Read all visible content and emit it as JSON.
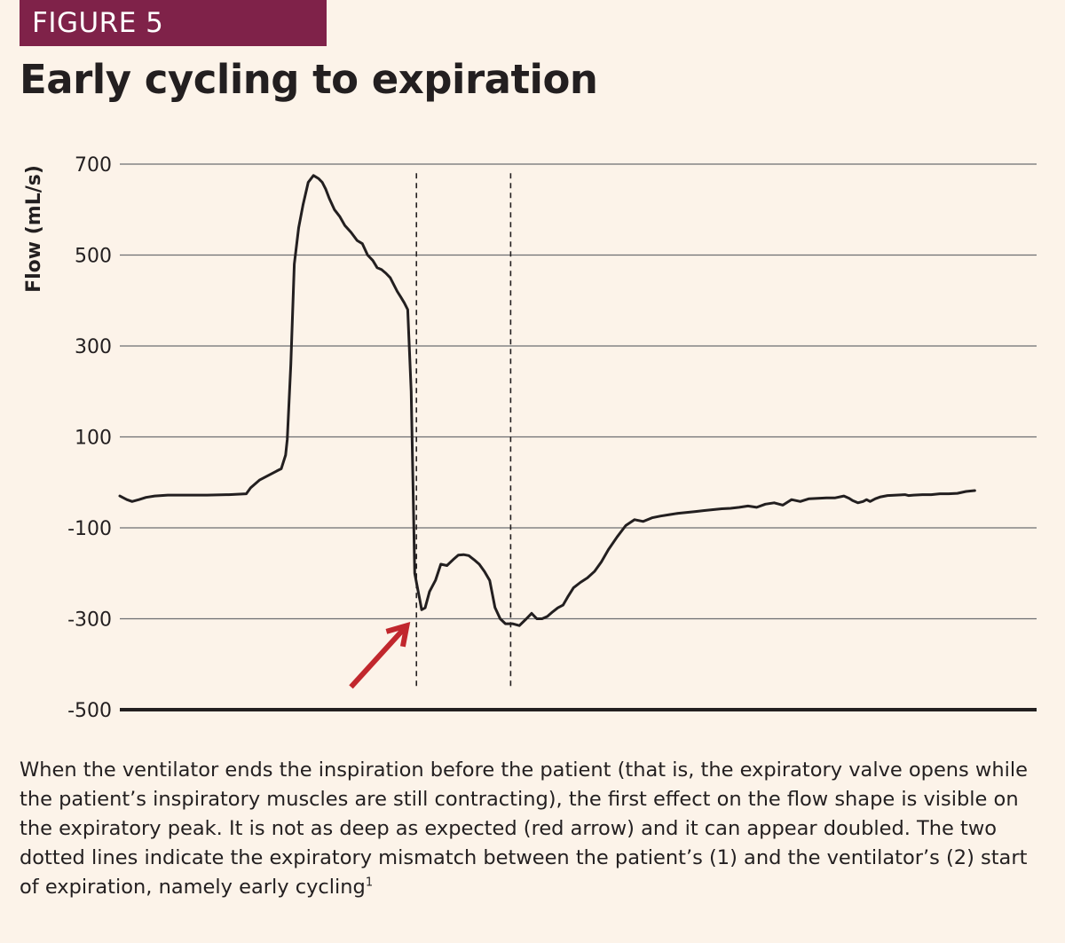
{
  "figure_label": "FIGURE 5",
  "title": "Early cycling to expiration",
  "caption": "When the ventilator ends the inspiration before the patient (that is, the expiratory valve opens while the patient’s inspiratory muscles are still contracting), the first effect on the flow shape is visible on the expiratory peak. It is not as deep as expected (red arrow) and it can appear doubled. The two dotted lines indicate the expiratory mismatch between the patient’s (1) and the ventilator’s (2) start of expiration, namely early cycling",
  "caption_sup": "1",
  "colors": {
    "badge": "#7f2249",
    "background": "#fcf3e9",
    "trace": "#231f20",
    "arrow": "#c1272d",
    "grid": "#6d6e71"
  },
  "chart_data": {
    "type": "line",
    "title": "Early cycling to expiration",
    "xlabel": "",
    "ylabel": "Flow (mL/s)",
    "ylim": [
      -500,
      700
    ],
    "yticks": [
      700,
      500,
      300,
      100,
      -100,
      -300,
      -500
    ],
    "ytick_labels": [
      "700",
      "500",
      "300",
      "100",
      "-100",
      "-300",
      "-500"
    ],
    "grid": "horizontal",
    "xlim": [
      0,
      1000
    ],
    "series": [
      {
        "x": [
          0,
          8,
          14,
          22,
          30,
          40,
          55,
          75,
          100,
          125,
          145,
          150,
          160,
          170,
          180,
          185,
          190,
          192,
          196,
          200,
          205,
          210,
          216,
          222,
          228,
          232,
          236,
          240,
          246,
          252,
          258,
          265,
          272,
          278,
          284,
          290,
          295,
          300,
          305,
          310,
          318,
          322,
          326,
          330,
          334,
          338,
          342,
          344,
          346,
          350,
          355,
          362,
          368,
          375,
          382,
          388,
          394,
          400,
          406,
          412,
          418,
          424,
          430,
          436,
          442,
          450,
          458,
          466,
          472,
          478,
          484,
          490,
          496,
          502,
          508,
          514,
          520,
          528,
          536,
          544,
          552,
          560,
          570,
          580,
          590,
          600,
          610,
          620,
          630,
          640,
          650,
          660,
          670,
          680,
          690,
          700,
          710,
          720,
          730,
          740,
          750,
          760,
          770,
          780,
          790,
          800,
          810,
          820,
          830,
          836,
          840,
          846,
          852,
          856,
          860,
          866,
          872,
          880,
          890,
          900,
          904,
          910,
          920,
          930,
          940,
          950,
          960,
          970,
          980
        ],
        "y": [
          -30,
          -38,
          -42,
          -38,
          -33,
          -30,
          -28,
          -28,
          -28,
          -27,
          -25,
          -12,
          5,
          15,
          25,
          30,
          60,
          95,
          260,
          480,
          560,
          610,
          660,
          675,
          668,
          660,
          645,
          625,
          600,
          585,
          565,
          550,
          532,
          525,
          500,
          488,
          472,
          468,
          460,
          450,
          420,
          408,
          395,
          380,
          200,
          -200,
          -240,
          -260,
          -280,
          -276,
          -240,
          -215,
          -180,
          -183,
          -170,
          -160,
          -159,
          -161,
          -170,
          -180,
          -196,
          -216,
          -275,
          -300,
          -311,
          -311,
          -315,
          -300,
          -288,
          -300,
          -300,
          -295,
          -285,
          -276,
          -270,
          -250,
          -232,
          -220,
          -210,
          -196,
          -175,
          -148,
          -120,
          -95,
          -82,
          -86,
          -78,
          -74,
          -71,
          -68,
          -66,
          -64,
          -62,
          -60,
          -58,
          -57,
          -55,
          -52,
          -55,
          -48,
          -45,
          -50,
          -38,
          -42,
          -36,
          -35,
          -34,
          -34,
          -30,
          -35,
          -40,
          -45,
          -42,
          -38,
          -42,
          -36,
          -32,
          -29,
          -28,
          -27,
          -29,
          -28,
          -27,
          -27,
          -25,
          -25,
          -24,
          -20,
          -18
        ]
      }
    ],
    "vlines": [
      {
        "x": 340,
        "ymin": -450,
        "ymax": 680,
        "style": "dotted"
      },
      {
        "x": 448,
        "ymin": -450,
        "ymax": 680,
        "style": "dotted"
      }
    ],
    "annotations": [
      {
        "type": "arrow",
        "color": "#c1272d",
        "from": [
          265,
          -450
        ],
        "to": [
          329,
          -315
        ]
      }
    ]
  }
}
